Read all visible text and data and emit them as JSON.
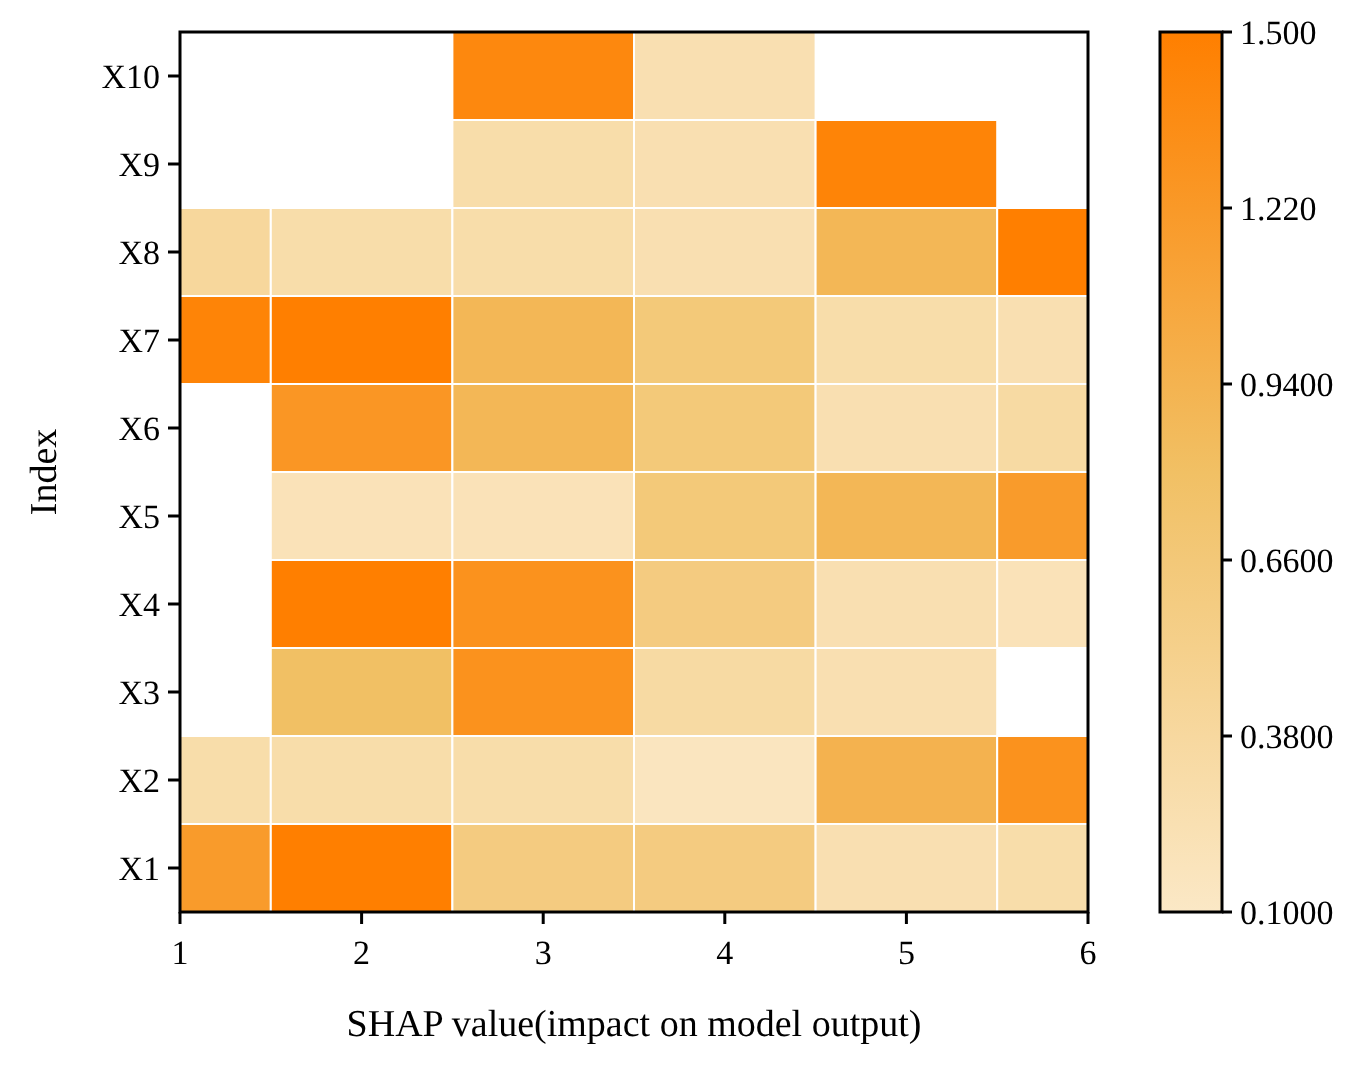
{
  "chart_data": {
    "type": "heatmap",
    "xlabel": "SHAP value(impact on model output)",
    "ylabel": "Index",
    "x": [
      1,
      2,
      3,
      4,
      5,
      6
    ],
    "xlim": [
      1,
      6
    ],
    "xticks": [
      1,
      2,
      3,
      4,
      5,
      6
    ],
    "y_categories": [
      "X10",
      "X9",
      "X8",
      "X7",
      "X6",
      "X5",
      "X4",
      "X3",
      "X2",
      "X1"
    ],
    "cells": [
      [
        null,
        null,
        1.4,
        0.25,
        null,
        null
      ],
      [
        null,
        null,
        0.3,
        0.25,
        1.45,
        null
      ],
      [
        0.4,
        0.3,
        0.3,
        0.25,
        0.9,
        1.5
      ],
      [
        1.45,
        1.5,
        0.9,
        0.65,
        0.3,
        0.25
      ],
      [
        null,
        1.25,
        0.9,
        0.65,
        0.25,
        0.35
      ],
      [
        null,
        0.2,
        0.2,
        0.65,
        0.9,
        1.2
      ],
      [
        null,
        1.5,
        1.3,
        0.6,
        0.25,
        0.2
      ],
      [
        null,
        0.8,
        1.3,
        0.35,
        0.25,
        null
      ],
      [
        0.3,
        0.3,
        0.3,
        0.15,
        0.95,
        1.3
      ],
      [
        1.2,
        1.5,
        0.6,
        0.6,
        0.25,
        0.3
      ]
    ],
    "clim": [
      0.1,
      1.5
    ],
    "cticks": [
      {
        "value": 0.1,
        "label": "0.1000"
      },
      {
        "value": 0.38,
        "label": "0.3800"
      },
      {
        "value": 0.66,
        "label": "0.6600"
      },
      {
        "value": 0.94,
        "label": "0.9400"
      },
      {
        "value": 1.22,
        "label": "1.220"
      },
      {
        "value": 1.5,
        "label": "1.500"
      }
    ]
  }
}
